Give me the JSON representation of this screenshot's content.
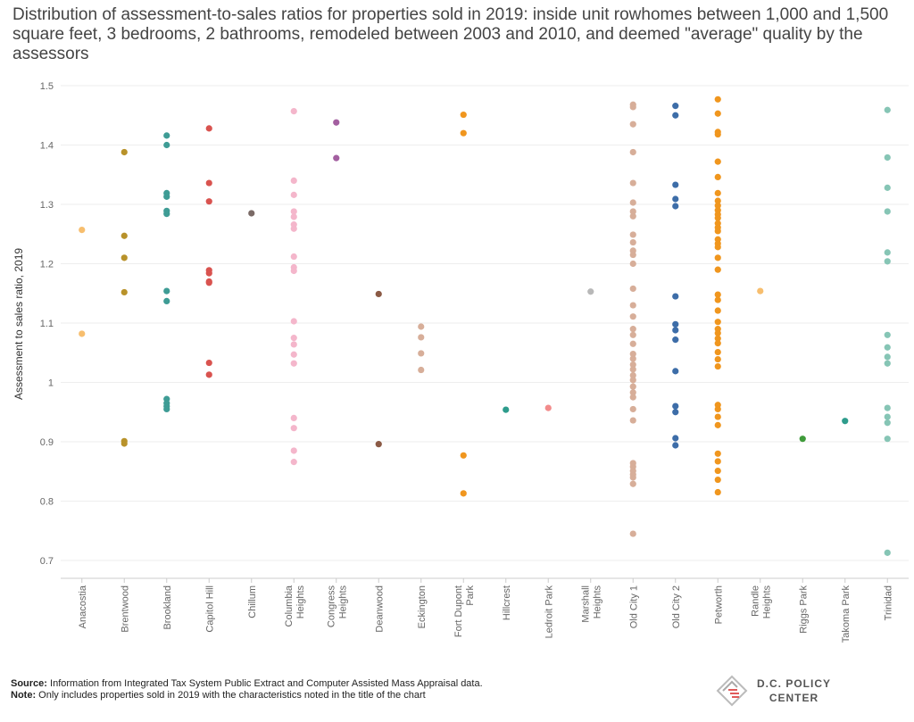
{
  "chart_data": {
    "type": "scatter",
    "title": "Distribution of assessment-to-sales ratios for properties sold in 2019: inside unit rowhomes  between 1,000 and 1,500 square feet, 3 bedrooms, 2 bathrooms, remodeled between 2003 and 2010, and deemed \"average\" quality by the assessors",
    "xlabel": "",
    "ylabel": "Assessment to sales ratio, 2019",
    "ylim": [
      0.67,
      1.5
    ],
    "yticks": [
      "0.7",
      "0.8",
      "0.9",
      "1",
      "1.1",
      "1.2",
      "1.3",
      "1.4",
      "1.5"
    ],
    "grid": true,
    "categories": [
      {
        "name": "Anacostia",
        "label_lines": [
          "Anacostia"
        ],
        "color": "#F7BE6E",
        "values": [
          1.257,
          1.082
        ]
      },
      {
        "name": "Brentwood",
        "label_lines": [
          "Brentwood"
        ],
        "color": "#B8922A",
        "values": [
          1.388,
          1.247,
          1.21,
          1.152,
          0.901,
          0.897
        ]
      },
      {
        "name": "Brookland",
        "label_lines": [
          "Brookland"
        ],
        "color": "#3E9C95",
        "values": [
          1.416,
          1.4,
          1.319,
          1.313,
          1.289,
          1.284,
          1.154,
          1.137,
          0.972,
          0.965,
          0.96,
          0.955
        ]
      },
      {
        "name": "Capitol Hill",
        "label_lines": [
          "Capitol Hill"
        ],
        "color": "#D9534F",
        "values": [
          1.428,
          1.336,
          1.305,
          1.189,
          1.184,
          1.17,
          1.168,
          1.033,
          1.013
        ]
      },
      {
        "name": "Chillum",
        "label_lines": [
          "Chillum"
        ],
        "color": "#7A6A66",
        "values": [
          1.285
        ]
      },
      {
        "name": "Columbia Heights",
        "label_lines": [
          "Columbia",
          "Heights"
        ],
        "color": "#F4B6CB",
        "values": [
          1.457,
          1.34,
          1.316,
          1.288,
          1.279,
          1.266,
          1.259,
          1.212,
          1.194,
          1.188,
          1.103,
          1.075,
          1.064,
          1.047,
          1.032,
          0.94,
          0.923,
          0.885,
          0.866
        ]
      },
      {
        "name": "Congress Heights",
        "label_lines": [
          "Congress",
          "Heights"
        ],
        "color": "#A35FA0",
        "values": [
          1.438,
          1.378
        ]
      },
      {
        "name": "Deanwood",
        "label_lines": [
          "Deanwood"
        ],
        "color": "#8B5A45",
        "values": [
          1.149,
          0.896
        ]
      },
      {
        "name": "Eckington",
        "label_lines": [
          "Eckington"
        ],
        "color": "#D7AE99",
        "values": [
          1.094,
          1.076,
          1.049,
          1.021
        ]
      },
      {
        "name": "Fort Dupont Park",
        "label_lines": [
          "Fort Dupont",
          "Park"
        ],
        "color": "#F0961E",
        "values": [
          1.451,
          1.42,
          0.877,
          0.813
        ]
      },
      {
        "name": "Hillcrest",
        "label_lines": [
          "Hillcrest"
        ],
        "color": "#2E9C8C",
        "values": [
          0.954
        ]
      },
      {
        "name": "Ledroit Park",
        "label_lines": [
          "Ledroit Park"
        ],
        "color": "#F28B8B",
        "values": [
          0.957
        ]
      },
      {
        "name": "Marshall Heights",
        "label_lines": [
          "Marshall",
          "Heights"
        ],
        "color": "#B8B8B8",
        "values": [
          1.153
        ]
      },
      {
        "name": "Old City 1",
        "label_lines": [
          "Old City 1"
        ],
        "color": "#D7AE99",
        "values": [
          1.468,
          1.464,
          1.435,
          1.388,
          1.336,
          1.303,
          1.288,
          1.28,
          1.249,
          1.236,
          1.222,
          1.215,
          1.2,
          1.158,
          1.13,
          1.111,
          1.09,
          1.08,
          1.065,
          1.048,
          1.04,
          1.03,
          1.022,
          1.012,
          1.004,
          0.993,
          0.983,
          0.975,
          0.955,
          0.936,
          0.864,
          0.858,
          0.851,
          0.845,
          0.84,
          0.829,
          0.745
        ]
      },
      {
        "name": "Old City 2",
        "label_lines": [
          "Old City 2"
        ],
        "color": "#3D6DA8",
        "values": [
          1.466,
          1.45,
          1.333,
          1.309,
          1.297,
          1.145,
          1.098,
          1.088,
          1.072,
          1.019,
          0.96,
          0.95,
          0.906,
          0.894
        ]
      },
      {
        "name": "Petworth",
        "label_lines": [
          "Petworth"
        ],
        "color": "#F0961E",
        "values": [
          1.477,
          1.453,
          1.422,
          1.418,
          1.372,
          1.346,
          1.319,
          1.306,
          1.298,
          1.29,
          1.283,
          1.277,
          1.268,
          1.261,
          1.255,
          1.241,
          1.234,
          1.228,
          1.21,
          1.19,
          1.148,
          1.139,
          1.121,
          1.102,
          1.09,
          1.083,
          1.074,
          1.066,
          1.051,
          1.039,
          1.027,
          0.962,
          0.955,
          0.942,
          0.928,
          0.88,
          0.867,
          0.851,
          0.836,
          0.815
        ]
      },
      {
        "name": "Randle Heights",
        "label_lines": [
          "Randle",
          "Heights"
        ],
        "color": "#F7BE6E",
        "values": [
          1.154
        ]
      },
      {
        "name": "Riggs Park",
        "label_lines": [
          "Riggs Park"
        ],
        "color": "#3F9B3A",
        "values": [
          0.905
        ]
      },
      {
        "name": "Takoma Park",
        "label_lines": [
          "Takoma Park"
        ],
        "color": "#2E9C8C",
        "values": [
          0.935
        ]
      },
      {
        "name": "Trinidad",
        "label_lines": [
          "Trinidad"
        ],
        "color": "#86C5B5",
        "values": [
          1.459,
          1.379,
          1.328,
          1.288,
          1.219,
          1.204,
          1.08,
          1.059,
          1.043,
          1.032,
          0.957,
          0.942,
          0.932,
          0.905,
          0.713
        ]
      }
    ]
  },
  "footer": {
    "source_label": "Source:",
    "source_text": " Information from Integrated Tax System Public Extract and  Computer Assisted Mass Appraisal data.",
    "note_label": "Note:",
    "note_text": " Only includes properties sold in 2019 with the characteristics noted in the title of the chart"
  },
  "logo": {
    "line1": "D.C. POLICY",
    "line2": "CENTER"
  },
  "colors": {
    "grid": "#eeeeee",
    "axis": "#cccccc"
  }
}
